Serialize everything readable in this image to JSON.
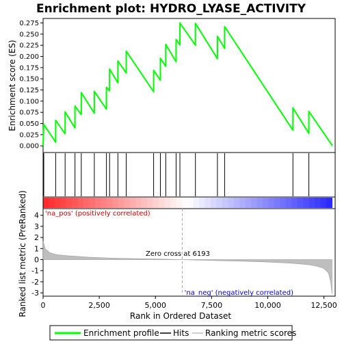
{
  "chart_data": {
    "type": "line",
    "title": "Enrichment plot: HYDRO_LYASE_ACTIVITY",
    "xlabel": "Rank in Ordered Dataset",
    "ylabel_top": "Enrichment score (ES)",
    "ylabel_bottom": "Ranked list metric (PreRanked)",
    "x_range": [
      0,
      13000
    ],
    "x_ticks": [
      0,
      2500,
      5000,
      7500,
      10000,
      12500
    ],
    "x_tick_labels": [
      "0",
      "2,500",
      "5,000",
      "7,500",
      "10,000",
      "12,500"
    ],
    "es_range": [
      -0.015,
      0.285
    ],
    "es_ticks": [
      0.0,
      0.025,
      0.05,
      0.075,
      0.1,
      0.125,
      0.15,
      0.175,
      0.2,
      0.225,
      0.25,
      0.275
    ],
    "es_tick_labels": [
      "0.000",
      "0.025",
      "0.050",
      "0.075",
      "0.100",
      "0.125",
      "0.150",
      "0.175",
      "0.200",
      "0.225",
      "0.250",
      "0.275"
    ],
    "metric_range": [
      -3.3,
      4.6
    ],
    "metric_ticks": [
      4,
      3,
      2,
      1,
      0,
      -1,
      -2,
      -3
    ],
    "metric_tick_labels": [
      "4",
      "3",
      "2",
      "1",
      "0",
      "-1",
      "-2",
      "-3"
    ],
    "hits": [
      30,
      560,
      980,
      1420,
      1700,
      2280,
      2820,
      2960,
      3330,
      3700,
      4920,
      5220,
      5460,
      5920,
      6090,
      6780,
      7760,
      8080,
      11120,
      11830
    ],
    "series": [
      {
        "name": "Enrichment profile",
        "x": [
          0,
          30,
          560,
          560,
          980,
          980,
          1420,
          1420,
          1700,
          1700,
          2280,
          2280,
          2820,
          2820,
          2960,
          2960,
          3330,
          3330,
          3700,
          3700,
          4920,
          4920,
          5220,
          5220,
          5460,
          5460,
          5920,
          5920,
          6090,
          6090,
          6780,
          6780,
          7760,
          7760,
          8080,
          8080,
          11120,
          11120,
          11830,
          11830,
          12880
        ],
        "y": [
          0.0,
          0.048,
          0.008,
          0.057,
          0.027,
          0.076,
          0.04,
          0.089,
          0.07,
          0.119,
          0.073,
          0.122,
          0.082,
          0.131,
          0.123,
          0.172,
          0.141,
          0.19,
          0.163,
          0.212,
          0.121,
          0.169,
          0.147,
          0.196,
          0.178,
          0.227,
          0.188,
          0.238,
          0.226,
          0.275,
          0.225,
          0.274,
          0.195,
          0.245,
          0.218,
          0.267,
          0.035,
          0.085,
          0.028,
          0.077,
          0.0
        ],
        "color": "#00ff00"
      }
    ],
    "metric_curve": {
      "x": [
        0,
        100,
        300,
        600,
        1000,
        2000,
        3000,
        4000,
        5000,
        6193,
        7000,
        8000,
        9000,
        10000,
        11000,
        11800,
        12200,
        12500,
        12700,
        12800,
        12860
      ],
      "y": [
        1.65,
        0.95,
        0.62,
        0.45,
        0.36,
        0.22,
        0.14,
        0.09,
        0.05,
        0.0,
        -0.05,
        -0.1,
        -0.15,
        -0.22,
        -0.32,
        -0.45,
        -0.6,
        -0.8,
        -1.2,
        -2.0,
        -3.1
      ]
    },
    "zero_cross_label": "Zero cross at 6193",
    "zero_cross_x": 6193,
    "pos_label": "'na_pos' (positively correlated)",
    "neg_label": "'na_neg' (negatively correlated)",
    "legend": {
      "placement": "bottom",
      "items": [
        "Enrichment profile",
        "Hits",
        "Ranking metric scores"
      ]
    },
    "colors": {
      "profile": "#00ff00",
      "hits": "#000000",
      "metric": "#bebebe",
      "pos_text": "#cc0000",
      "neg_text": "#0000cc",
      "band_pos_dark": "#ff0000",
      "band_neg_dark": "#0000ff"
    }
  }
}
